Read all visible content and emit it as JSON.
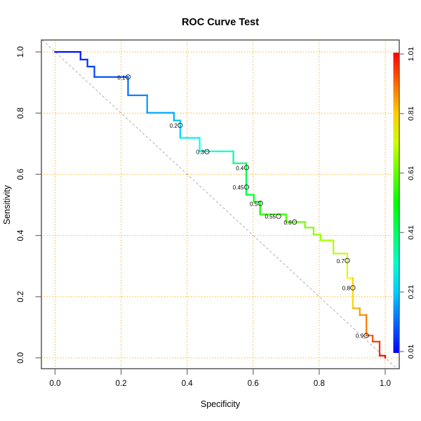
{
  "title": "ROC Curve Test",
  "chart_data": {
    "type": "line",
    "subtype": "roc-step-curve-colorized",
    "title": "ROC Curve Test",
    "xlabel": "Specificity",
    "ylabel": "Sensitivity",
    "xlim": [
      0.0,
      1.0
    ],
    "ylim": [
      0.0,
      1.0
    ],
    "x_ticks": [
      "0.0",
      "0.2",
      "0.4",
      "0.6",
      "0.8",
      "1.0"
    ],
    "y_ticks": [
      "0.0",
      "0.2",
      "0.4",
      "0.6",
      "0.8",
      "1.0"
    ],
    "grid": {
      "show": true,
      "positions": [
        0.0,
        0.2,
        0.4,
        0.6,
        0.8,
        1.0
      ],
      "color": "#FFA500",
      "style": "dotted"
    },
    "diagonal": {
      "from": [
        0.0,
        1.0
      ],
      "to": [
        1.0,
        0.0
      ],
      "color": "#B0B0B0",
      "style": "dashed"
    },
    "curve": {
      "color_by": "threshold",
      "threshold_range": [
        0.01,
        1.01
      ],
      "colormap": "rainbow blue(low) to red(high)",
      "points": [
        [
          0.0,
          1.0,
          0.01
        ],
        [
          0.077,
          1.0,
          0.03
        ],
        [
          0.077,
          0.975,
          0.04
        ],
        [
          0.098,
          0.975,
          0.05
        ],
        [
          0.098,
          0.952,
          0.06
        ],
        [
          0.119,
          0.952,
          0.07
        ],
        [
          0.119,
          0.918,
          0.08
        ],
        [
          0.221,
          0.918,
          0.1
        ],
        [
          0.221,
          0.858,
          0.13
        ],
        [
          0.279,
          0.858,
          0.15
        ],
        [
          0.279,
          0.801,
          0.17
        ],
        [
          0.36,
          0.801,
          0.18
        ],
        [
          0.36,
          0.776,
          0.19
        ],
        [
          0.379,
          0.776,
          0.2
        ],
        [
          0.379,
          0.719,
          0.23
        ],
        [
          0.438,
          0.719,
          0.26
        ],
        [
          0.438,
          0.675,
          0.28
        ],
        [
          0.54,
          0.675,
          0.33
        ],
        [
          0.54,
          0.636,
          0.37
        ],
        [
          0.579,
          0.636,
          0.39
        ],
        [
          0.579,
          0.533,
          0.46
        ],
        [
          0.602,
          0.533,
          0.48
        ],
        [
          0.602,
          0.51,
          0.49
        ],
        [
          0.621,
          0.51,
          0.5
        ],
        [
          0.621,
          0.469,
          0.53
        ],
        [
          0.7,
          0.469,
          0.57
        ],
        [
          0.7,
          0.444,
          0.59
        ],
        [
          0.757,
          0.444,
          0.62
        ],
        [
          0.757,
          0.426,
          0.63
        ],
        [
          0.783,
          0.426,
          0.64
        ],
        [
          0.783,
          0.403,
          0.65
        ],
        [
          0.804,
          0.403,
          0.66
        ],
        [
          0.804,
          0.384,
          0.67
        ],
        [
          0.843,
          0.384,
          0.68
        ],
        [
          0.843,
          0.341,
          0.69
        ],
        [
          0.885,
          0.341,
          0.7
        ],
        [
          0.885,
          0.261,
          0.75
        ],
        [
          0.902,
          0.261,
          0.78
        ],
        [
          0.902,
          0.162,
          0.82
        ],
        [
          0.923,
          0.162,
          0.85
        ],
        [
          0.923,
          0.14,
          0.86
        ],
        [
          0.943,
          0.14,
          0.88
        ],
        [
          0.943,
          0.073,
          0.9
        ],
        [
          0.962,
          0.073,
          0.92
        ],
        [
          0.962,
          0.053,
          0.94
        ],
        [
          0.983,
          0.053,
          0.96
        ],
        [
          0.983,
          0.007,
          0.98
        ],
        [
          1.0,
          0.007,
          1.0
        ],
        [
          1.0,
          0.0,
          1.01
        ]
      ]
    },
    "threshold_labels": [
      {
        "label": "0.1",
        "x": 0.221,
        "y": 0.918,
        "c": 0.1
      },
      {
        "label": "0.2",
        "x": 0.379,
        "y": 0.76,
        "c": 0.2
      },
      {
        "label": "0.3",
        "x": 0.46,
        "y": 0.674,
        "c": 0.3
      },
      {
        "label": "0.4",
        "x": 0.58,
        "y": 0.622,
        "c": 0.4
      },
      {
        "label": "0.45",
        "x": 0.58,
        "y": 0.558,
        "c": 0.45
      },
      {
        "label": "0.5",
        "x": 0.622,
        "y": 0.505,
        "c": 0.5
      },
      {
        "label": "0.55",
        "x": 0.677,
        "y": 0.463,
        "c": 0.55
      },
      {
        "label": "0.6",
        "x": 0.725,
        "y": 0.444,
        "c": 0.6
      },
      {
        "label": "0.7",
        "x": 0.885,
        "y": 0.318,
        "c": 0.7
      },
      {
        "label": "0.8",
        "x": 0.902,
        "y": 0.229,
        "c": 0.8
      },
      {
        "label": "0.9",
        "x": 0.943,
        "y": 0.073,
        "c": 0.9
      }
    ],
    "colorbar": {
      "min": 0.01,
      "max": 1.01,
      "tick_labels": [
        "1.01",
        "0.81",
        "0.61",
        "0.41",
        "0.21",
        "0.01"
      ],
      "top_color": "#FF0000",
      "bottom_color": "#0000FF",
      "position": "right"
    }
  },
  "colors": {
    "grid": "#FFA500",
    "diagonal": "#B0B0B0",
    "box": "#4D4D4D",
    "tick": "#808080",
    "text": "#000000",
    "background": "#FFFFFF"
  }
}
